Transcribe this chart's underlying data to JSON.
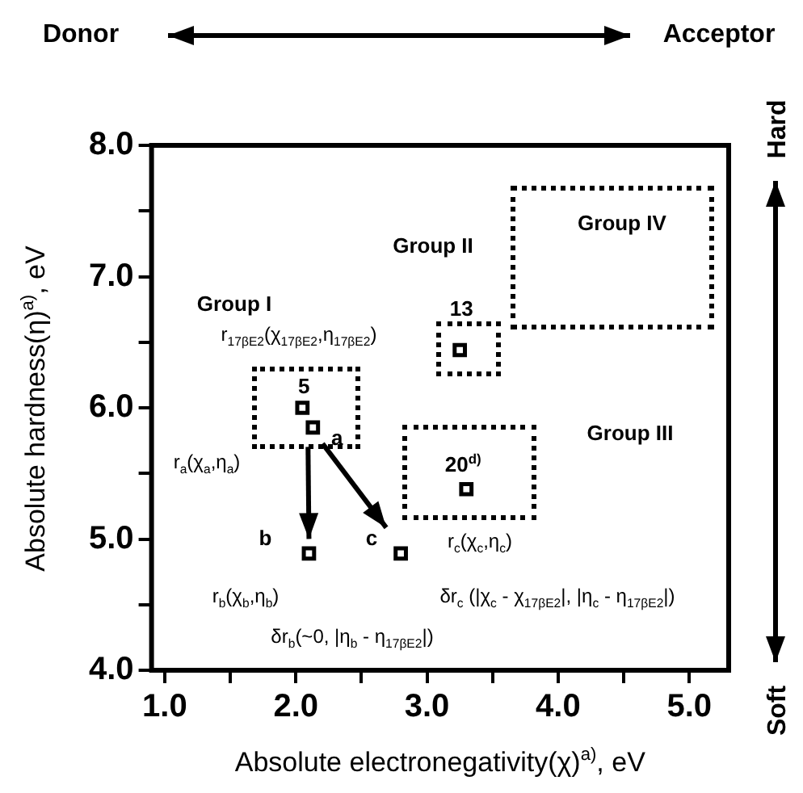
{
  "chart_data": {
    "type": "scatter",
    "xlabel": "Absolute electronegativity(χ)$^{a)}$, eV",
    "ylabel": "Absolute hardness(η)$^{a)}$, eV",
    "x": [
      2.05,
      2.13,
      3.25,
      3.3,
      2.1,
      2.8
    ],
    "values": [
      6.0,
      5.85,
      6.44,
      5.38,
      4.89,
      4.89
    ],
    "color": "#000000",
    "marker": "square",
    "grid": false,
    "legend": false,
    "xlim": [
      0.9,
      5.3
    ],
    "ylim": [
      4.0,
      8.0
    ],
    "xticks": [
      {
        "value": 1,
        "label": "1.0"
      },
      {
        "value": 1.5,
        "label": null
      },
      {
        "value": 2,
        "label": "2.0"
      },
      {
        "value": 2.5,
        "label": null
      },
      {
        "value": 3,
        "label": "3.0"
      },
      {
        "value": 3.5,
        "label": null
      },
      {
        "value": 4,
        "label": "4.0"
      },
      {
        "value": 4.5,
        "label": null
      },
      {
        "value": 5,
        "label": "5.0"
      }
    ],
    "yticks": [
      {
        "value": 4,
        "label": "4.0"
      },
      {
        "value": 4.5,
        "label": null
      },
      {
        "value": 5,
        "label": "5.0"
      },
      {
        "value": 5.5,
        "label": null
      },
      {
        "value": 6,
        "label": "6.0"
      },
      {
        "value": 6.5,
        "label": null
      },
      {
        "value": 7,
        "label": "7.0"
      },
      {
        "value": 7.5,
        "label": null
      },
      {
        "value": 8,
        "label": "8.0"
      }
    ],
    "annotations": [
      "Donor",
      "Acceptor",
      "Hard",
      "Soft",
      "Group I",
      "r$_{17βE2}$(χ$_{17βE2}$,η$_{17βE2}$)",
      "Group II",
      "Group IV",
      "Group III",
      "5",
      "a",
      "13",
      "20$^{d)}$",
      {
        "text": "b",
        "x": 2.1,
        "y": 4.89
      },
      {
        "text": "c",
        "x": 2.8,
        "y": 4.89
      },
      "r$_{a}$(χ$_{a}$,η$_{a}$)",
      "r$_{c}$(χ$_{c}$,η$_{c}$)",
      "r$_{b}$(χ$_{b}$,η$_{b}$)",
      "δr$_{c}$ (|χ$_{c}$ - χ$_{17βE2}$|, |η$_{c}$ - η$_{17βE2}$|)",
      "δr$_{b}$(~0, |η$_{b}$ - η$_{17βE2}$|)"
    ]
  }
}
